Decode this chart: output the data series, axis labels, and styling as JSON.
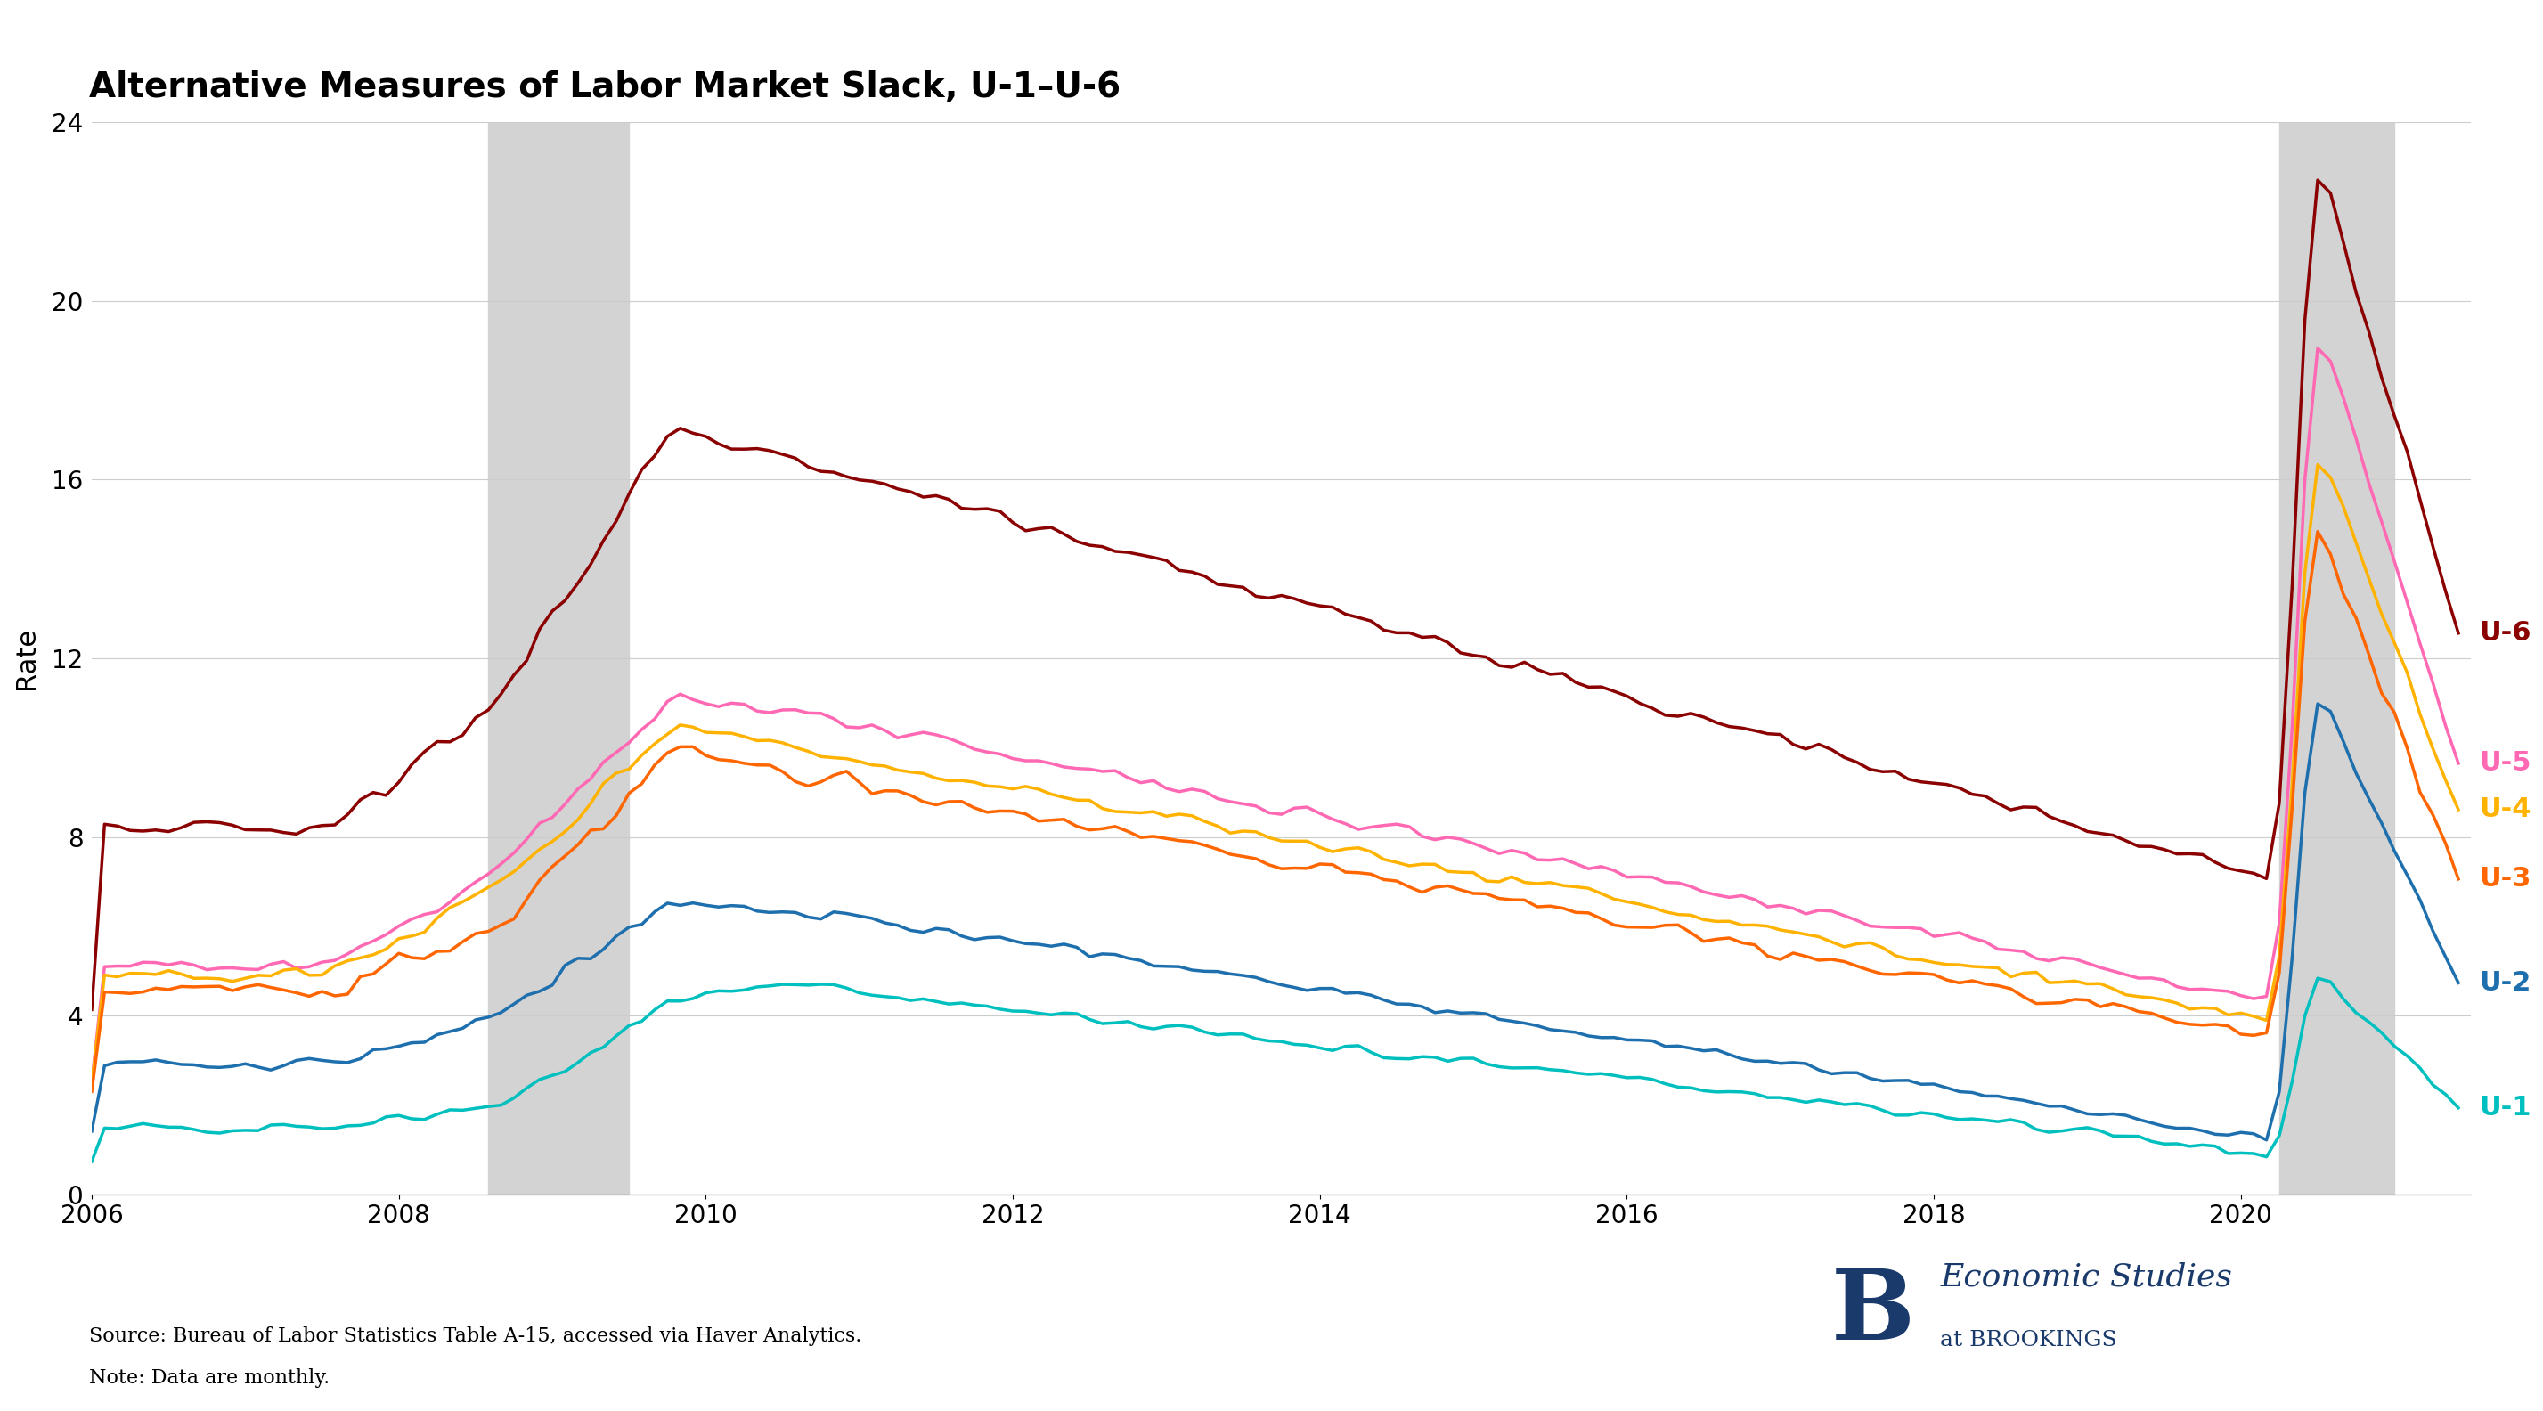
{
  "title": "Alternative Measures of Labor Market Slack, U-1–U-6",
  "ylabel": "Rate",
  "source_text": "Source: Bureau of Labor Statistics Table A-15, accessed via Haver Analytics.",
  "note_text": "Note: Data are monthly.",
  "background_color": "#ffffff",
  "plot_bg_color": "#ffffff",
  "recession_color": "#d3d3d3",
  "recession_periods": [
    [
      2008.583,
      2009.5
    ]
  ],
  "covid_recession": [
    2020.25,
    2021.0
  ],
  "ylim": [
    0,
    24
  ],
  "yticks": [
    0,
    4,
    8,
    12,
    16,
    20,
    24
  ],
  "xlim": [
    2006.0,
    2021.5
  ],
  "series": {
    "U6": {
      "color": "#8B0000",
      "label": "U-6",
      "label_color": "#8B0000"
    },
    "U5": {
      "color": "#FF69B4",
      "label": "U-5",
      "label_color": "#FF69B4"
    },
    "U4": {
      "color": "#FFB300",
      "label": "U-4",
      "label_color": "#FFB300"
    },
    "U3": {
      "color": "#FF6600",
      "label": "U-3",
      "label_color": "#FF6600"
    },
    "U2": {
      "color": "#1E6FAE",
      "label": "U-2",
      "label_color": "#1E6FAE"
    },
    "U1": {
      "color": "#00BFBF",
      "label": "U-1",
      "label_color": "#00BFBF"
    }
  },
  "brookings_color": "#1a3a6b"
}
